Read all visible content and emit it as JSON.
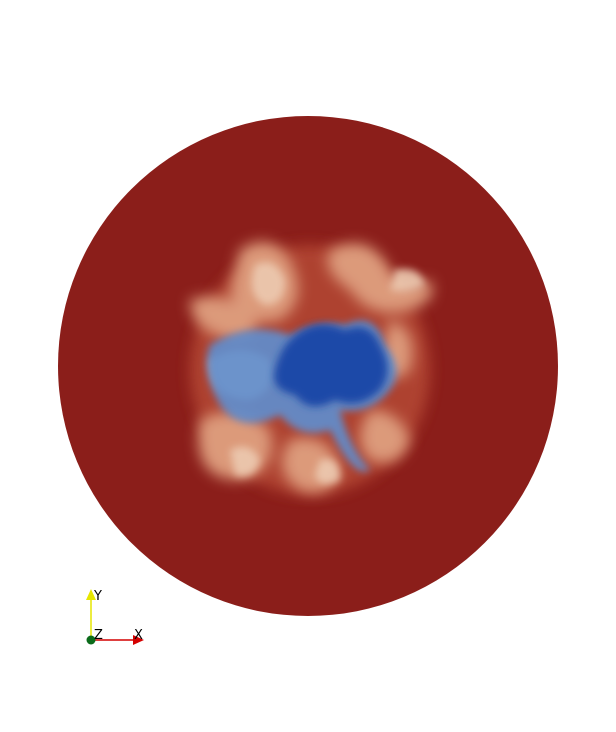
{
  "scene": {
    "background_color": "#ffffff",
    "disk_color": "#8b1e1a",
    "colormap": [
      "#1f48a8",
      "#3f73c4",
      "#d9b8a0",
      "#e08a6a",
      "#8b1e1a"
    ]
  },
  "orientation_axes": {
    "x_label": "X",
    "y_label": "Y",
    "z_label": "Z",
    "x_color": "#d40000",
    "y_color": "#e6e600",
    "z_color": "#0b6b1a"
  }
}
